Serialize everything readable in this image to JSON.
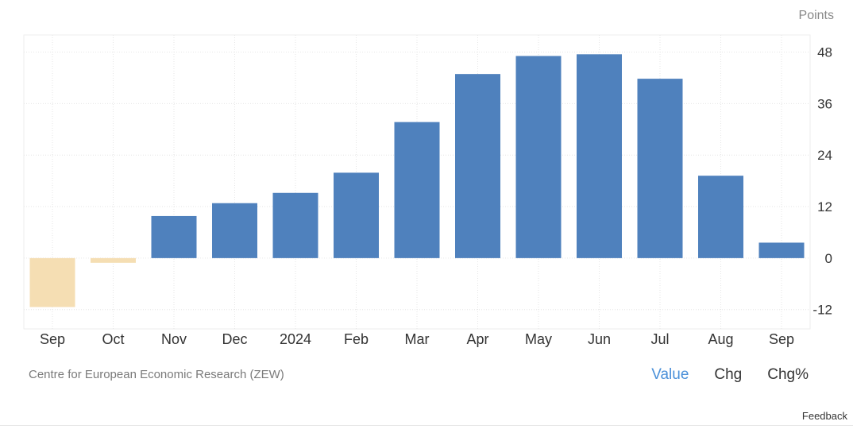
{
  "header": {
    "unit": "Points"
  },
  "footer": {
    "source": "Centre for European Economic Research (ZEW)",
    "tabs": [
      {
        "label": "Value",
        "active": true
      },
      {
        "label": "Chg",
        "active": false
      },
      {
        "label": "Chg%",
        "active": false
      }
    ],
    "feedback": "Feedback"
  },
  "colors": {
    "positive": "#4f81bd",
    "negative": "#f5deb3",
    "grid": "#e6e6e6",
    "axis": "#333333"
  },
  "chart_data": {
    "type": "bar",
    "categories": [
      "Sep",
      "Oct",
      "Nov",
      "Dec",
      "2024",
      "Feb",
      "Mar",
      "Apr",
      "May",
      "Jun",
      "Jul",
      "Aug",
      "Sep"
    ],
    "values": [
      -11.4,
      -1.1,
      9.8,
      12.8,
      15.2,
      19.9,
      31.7,
      42.9,
      47.1,
      47.5,
      41.8,
      19.2,
      3.6
    ],
    "ylabel": "Points",
    "yticks": [
      48,
      36,
      24,
      12,
      0,
      -12
    ],
    "ylim": [
      -16.5,
      52
    ],
    "grid": true,
    "y_axis_side": "right"
  }
}
